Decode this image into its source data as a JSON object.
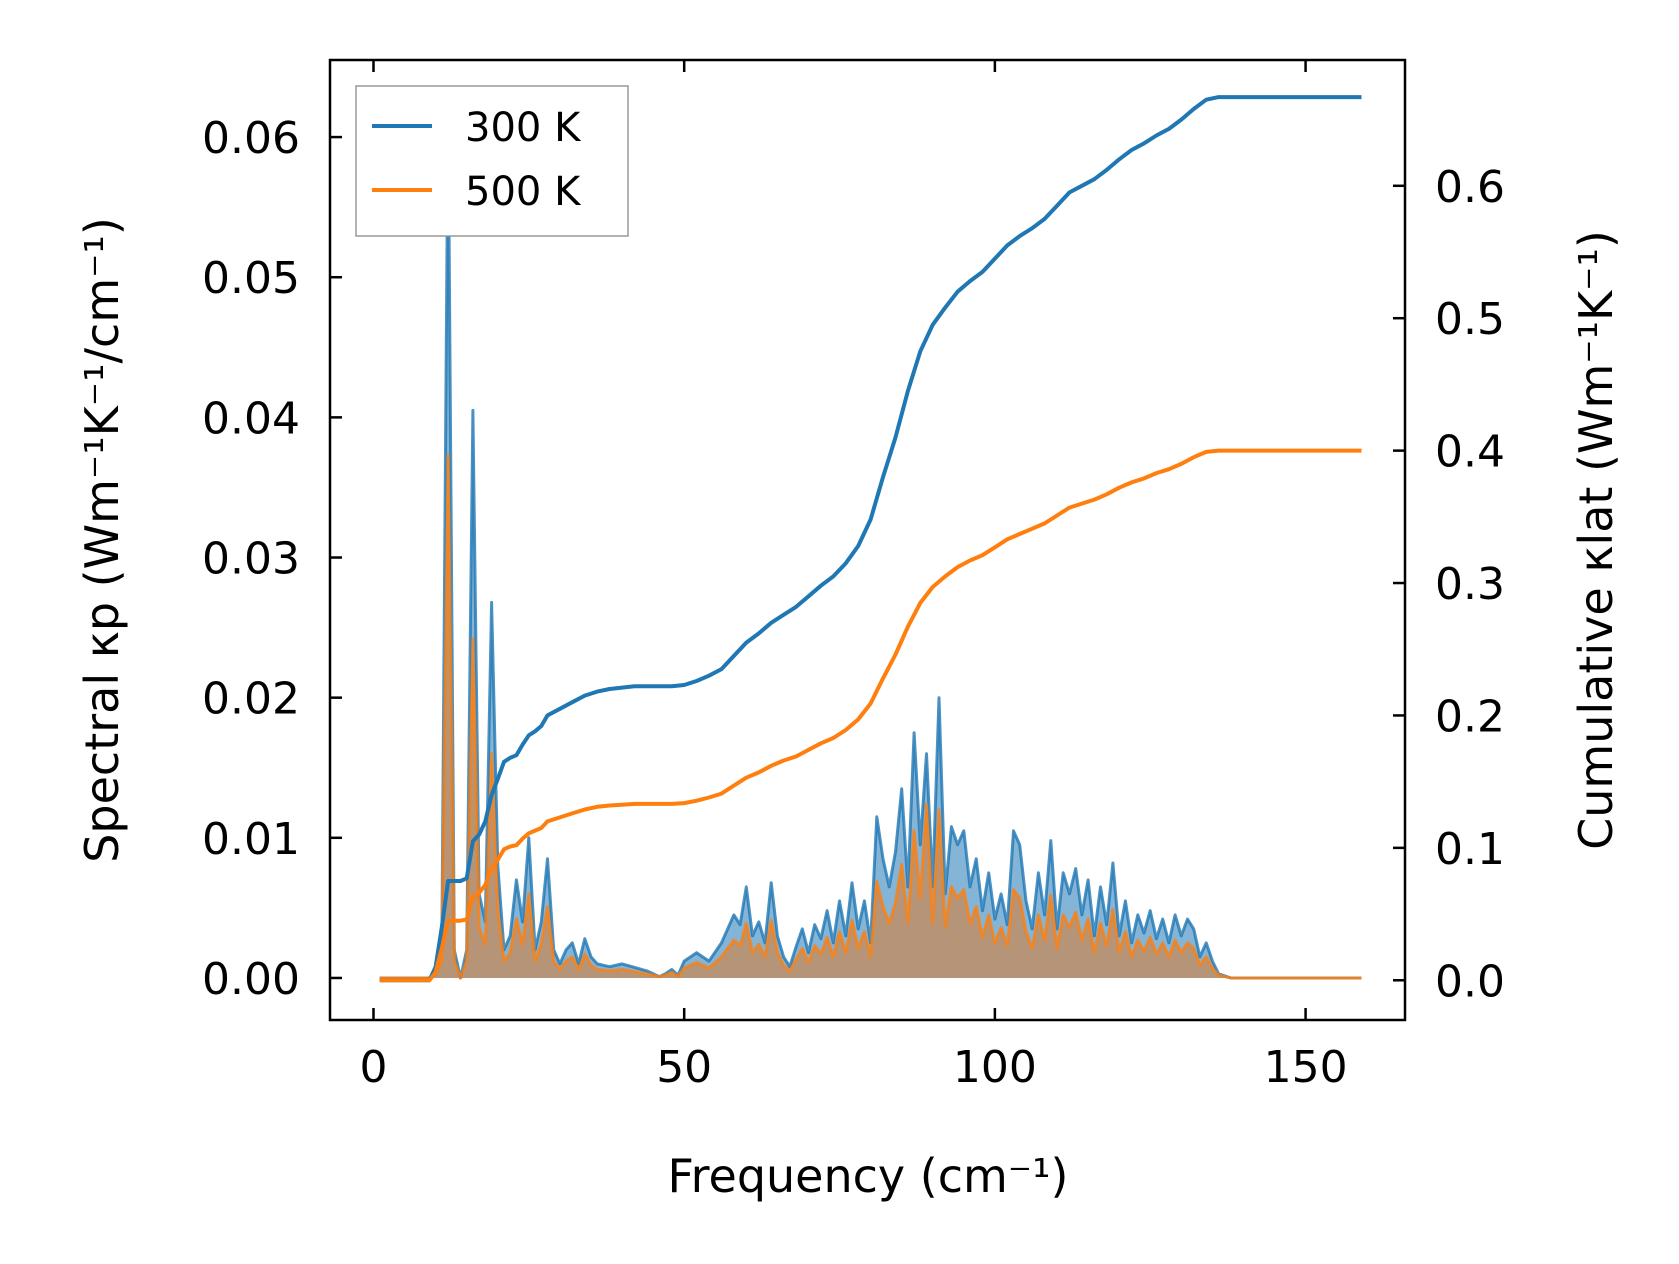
{
  "chart_data": {
    "type": "line",
    "title": "",
    "xlabel": "Frequency (cm⁻¹)",
    "ylabel_left": "Spectral κp (Wm⁻¹K⁻¹/cm⁻¹)",
    "ylabel_right": "Cumulative κlat (Wm⁻¹K⁻¹)",
    "xlim": [
      -7,
      166
    ],
    "ylim_left": [
      -0.003,
      0.0655
    ],
    "ylim_right": [
      -0.03,
      0.695
    ],
    "x_ticks": [
      0,
      50,
      100,
      150
    ],
    "y_ticks_left": [
      0.0,
      0.01,
      0.02,
      0.03,
      0.04,
      0.05,
      0.06
    ],
    "y_ticks_right": [
      0.0,
      0.1,
      0.2,
      0.3,
      0.4,
      0.5,
      0.6
    ],
    "x_tick_labels": [
      "0",
      "50",
      "100",
      "150"
    ],
    "y_tick_labels_left": [
      "0.00",
      "0.01",
      "0.02",
      "0.03",
      "0.04",
      "0.05",
      "0.06"
    ],
    "y_tick_labels_right": [
      "0.0",
      "0.1",
      "0.2",
      "0.3",
      "0.4",
      "0.5",
      "0.6"
    ],
    "legend": {
      "location": "upper left",
      "entries": [
        "300 K",
        "500 K"
      ]
    },
    "colors": {
      "300K": "#1f77b4",
      "500K": "#ff7f0e",
      "fill_300K": "#1f77b4",
      "fill_500K": "#e07a2a"
    },
    "spectral_300K": {
      "x": [
        1,
        9,
        10,
        11,
        12,
        13,
        14,
        15,
        16,
        17,
        18,
        19,
        20,
        21,
        22,
        23,
        24,
        25,
        26,
        27,
        28,
        29,
        30,
        31,
        32,
        33,
        34,
        35,
        36,
        38,
        40,
        44,
        46,
        47,
        48,
        49,
        50,
        52,
        54,
        56,
        58,
        59,
        60,
        61,
        62,
        63,
        64,
        65,
        66,
        67,
        68,
        69,
        70,
        71,
        72,
        73,
        74,
        75,
        76,
        77,
        78,
        79,
        80,
        81,
        82,
        83,
        84,
        85,
        86,
        87,
        88,
        89,
        90,
        91,
        92,
        93,
        94,
        95,
        96,
        97,
        98,
        99,
        100,
        101,
        102,
        103,
        104,
        105,
        106,
        107,
        108,
        109,
        110,
        111,
        112,
        113,
        114,
        115,
        116,
        117,
        118,
        119,
        120,
        121,
        122,
        123,
        124,
        125,
        126,
        127,
        128,
        129,
        130,
        131,
        132,
        133,
        134,
        135,
        136,
        138,
        159
      ],
      "y": [
        0,
        0,
        0.0005,
        0.002,
        0.0625,
        0.002,
        0,
        0.002,
        0.0405,
        0.006,
        0.004,
        0.0268,
        0.008,
        0.002,
        0.003,
        0.007,
        0.004,
        0.01,
        0.002,
        0.004,
        0.0085,
        0.002,
        0.001,
        0.002,
        0.0025,
        0.001,
        0.0028,
        0.0015,
        0.001,
        0.0008,
        0.001,
        0.0005,
        0.0001,
        0.0003,
        0.0006,
        0.0002,
        0.0012,
        0.0018,
        0.0012,
        0.0025,
        0.0045,
        0.0038,
        0.0065,
        0.003,
        0.004,
        0.0025,
        0.0068,
        0.003,
        0.0015,
        0.0008,
        0.0022,
        0.0035,
        0.0018,
        0.0038,
        0.0028,
        0.0048,
        0.0025,
        0.0055,
        0.003,
        0.0068,
        0.0035,
        0.0055,
        0.0025,
        0.0115,
        0.0085,
        0.0065,
        0.009,
        0.0135,
        0.0065,
        0.0175,
        0.0095,
        0.016,
        0.0065,
        0.02,
        0.006,
        0.0108,
        0.0095,
        0.0105,
        0.0065,
        0.0085,
        0.0048,
        0.0075,
        0.0042,
        0.006,
        0.0038,
        0.0105,
        0.0095,
        0.0055,
        0.0035,
        0.0075,
        0.0045,
        0.0098,
        0.0035,
        0.0075,
        0.006,
        0.0078,
        0.0045,
        0.007,
        0.003,
        0.0065,
        0.0038,
        0.0082,
        0.003,
        0.0055,
        0.0025,
        0.0045,
        0.0032,
        0.0048,
        0.0028,
        0.0042,
        0.0025,
        0.0045,
        0.003,
        0.0042,
        0.0035,
        0.0015,
        0.0025,
        0.0012,
        0.0003,
        0,
        0
      ]
    },
    "spectral_500K": {
      "x": [
        1,
        9,
        10,
        11,
        12,
        13,
        14,
        15,
        16,
        17,
        18,
        19,
        20,
        21,
        22,
        23,
        24,
        25,
        26,
        27,
        28,
        29,
        30,
        31,
        32,
        33,
        34,
        35,
        36,
        38,
        40,
        44,
        46,
        47,
        48,
        49,
        50,
        52,
        54,
        56,
        58,
        59,
        60,
        61,
        62,
        63,
        64,
        65,
        66,
        67,
        68,
        69,
        70,
        71,
        72,
        73,
        74,
        75,
        76,
        77,
        78,
        79,
        80,
        81,
        82,
        83,
        84,
        85,
        86,
        87,
        88,
        89,
        90,
        91,
        92,
        93,
        94,
        95,
        96,
        97,
        98,
        99,
        100,
        101,
        102,
        103,
        104,
        105,
        106,
        107,
        108,
        109,
        110,
        111,
        112,
        113,
        114,
        115,
        116,
        117,
        118,
        119,
        120,
        121,
        122,
        123,
        124,
        125,
        126,
        127,
        128,
        129,
        130,
        131,
        132,
        133,
        134,
        135,
        136,
        138,
        159
      ],
      "y": [
        0,
        0,
        0.0003,
        0.0012,
        0.0373,
        0.0012,
        0,
        0.0012,
        0.0242,
        0.0036,
        0.0024,
        0.016,
        0.0048,
        0.0012,
        0.0018,
        0.0042,
        0.0024,
        0.006,
        0.0012,
        0.0024,
        0.0051,
        0.0012,
        0.0006,
        0.0012,
        0.0015,
        0.0006,
        0.0017,
        0.0009,
        0.0006,
        0.0005,
        0.0006,
        0.0003,
        0.0001,
        0.0002,
        0.0004,
        0.0001,
        0.0007,
        0.0011,
        0.0007,
        0.0015,
        0.0027,
        0.0023,
        0.0039,
        0.0018,
        0.0024,
        0.0015,
        0.0041,
        0.0018,
        0.0009,
        0.0005,
        0.0013,
        0.0021,
        0.0011,
        0.0023,
        0.0017,
        0.0029,
        0.0015,
        0.0033,
        0.0018,
        0.0041,
        0.0021,
        0.0033,
        0.0015,
        0.0069,
        0.0051,
        0.0039,
        0.0054,
        0.0081,
        0.0039,
        0.0105,
        0.0057,
        0.0124,
        0.0039,
        0.012,
        0.0036,
        0.0065,
        0.0057,
        0.0063,
        0.0039,
        0.0051,
        0.0029,
        0.0045,
        0.0025,
        0.0036,
        0.0023,
        0.0063,
        0.0057,
        0.0033,
        0.0021,
        0.0045,
        0.0027,
        0.0059,
        0.0021,
        0.0045,
        0.0036,
        0.0047,
        0.0027,
        0.0042,
        0.0018,
        0.0039,
        0.0023,
        0.0049,
        0.0018,
        0.0033,
        0.0015,
        0.0027,
        0.0019,
        0.0029,
        0.0017,
        0.0025,
        0.0015,
        0.0027,
        0.0018,
        0.0025,
        0.0021,
        0.0009,
        0.0015,
        0.0007,
        0.0002,
        0,
        0
      ]
    },
    "cumulative_300K": {
      "x": [
        1,
        9,
        10,
        11,
        12,
        14,
        15,
        16,
        17,
        18,
        19,
        20,
        21,
        22,
        23,
        24,
        25,
        26,
        27,
        28,
        30,
        32,
        34,
        36,
        38,
        40,
        42,
        44,
        46,
        48,
        50,
        52,
        54,
        56,
        58,
        60,
        62,
        64,
        66,
        68,
        70,
        72,
        74,
        76,
        78,
        80,
        82,
        84,
        86,
        88,
        90,
        92,
        94,
        96,
        98,
        100,
        102,
        104,
        106,
        108,
        110,
        112,
        114,
        116,
        118,
        120,
        122,
        124,
        126,
        128,
        130,
        132,
        134,
        136,
        159
      ],
      "y": [
        0,
        0,
        0.01,
        0.04,
        0.075,
        0.075,
        0.077,
        0.105,
        0.11,
        0.12,
        0.14,
        0.152,
        0.165,
        0.168,
        0.17,
        0.178,
        0.185,
        0.188,
        0.192,
        0.2,
        0.205,
        0.21,
        0.215,
        0.218,
        0.22,
        0.221,
        0.222,
        0.222,
        0.222,
        0.222,
        0.223,
        0.226,
        0.23,
        0.235,
        0.245,
        0.255,
        0.262,
        0.27,
        0.276,
        0.282,
        0.29,
        0.298,
        0.305,
        0.315,
        0.328,
        0.348,
        0.38,
        0.41,
        0.445,
        0.475,
        0.495,
        0.508,
        0.52,
        0.528,
        0.535,
        0.545,
        0.555,
        0.562,
        0.568,
        0.575,
        0.585,
        0.595,
        0.6,
        0.605,
        0.612,
        0.62,
        0.627,
        0.632,
        0.638,
        0.643,
        0.65,
        0.658,
        0.665,
        0.667,
        0.667
      ]
    },
    "cumulative_500K": {
      "x": [
        1,
        9,
        10,
        11,
        12,
        14,
        15,
        16,
        17,
        18,
        19,
        20,
        21,
        22,
        23,
        24,
        25,
        26,
        27,
        28,
        30,
        32,
        34,
        36,
        38,
        40,
        42,
        44,
        46,
        48,
        50,
        52,
        54,
        56,
        58,
        60,
        62,
        64,
        66,
        68,
        70,
        72,
        74,
        76,
        78,
        80,
        82,
        84,
        86,
        88,
        90,
        92,
        94,
        96,
        98,
        100,
        102,
        104,
        106,
        108,
        110,
        112,
        114,
        116,
        118,
        120,
        122,
        124,
        126,
        128,
        130,
        132,
        134,
        136,
        159
      ],
      "y": [
        0,
        0,
        0.006,
        0.024,
        0.045,
        0.045,
        0.046,
        0.063,
        0.066,
        0.072,
        0.084,
        0.091,
        0.099,
        0.101,
        0.102,
        0.107,
        0.111,
        0.113,
        0.115,
        0.12,
        0.123,
        0.126,
        0.129,
        0.131,
        0.132,
        0.1326,
        0.1332,
        0.1332,
        0.1332,
        0.1332,
        0.1338,
        0.1356,
        0.138,
        0.141,
        0.147,
        0.153,
        0.157,
        0.162,
        0.166,
        0.169,
        0.174,
        0.179,
        0.183,
        0.189,
        0.197,
        0.209,
        0.228,
        0.246,
        0.267,
        0.285,
        0.297,
        0.305,
        0.312,
        0.317,
        0.321,
        0.327,
        0.333,
        0.337,
        0.341,
        0.345,
        0.351,
        0.357,
        0.36,
        0.363,
        0.367,
        0.372,
        0.376,
        0.379,
        0.383,
        0.386,
        0.39,
        0.395,
        0.399,
        0.4,
        0.4
      ]
    }
  }
}
